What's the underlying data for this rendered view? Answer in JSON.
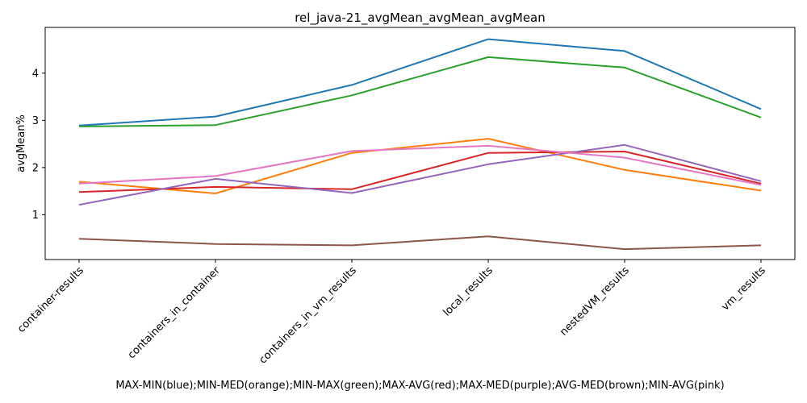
{
  "chart_data": {
    "type": "line",
    "title": "rel_java-21_avgMean_avgMean_avgMean",
    "xlabel": "MAX-MIN(blue);MIN-MED(orange);MIN-MAX(green);MAX-AVG(red);MAX-MED(purple);AVG-MED(brown);MIN-AVG(pink)",
    "ylabel": "avgMean%",
    "categories": [
      "container-results",
      "containers_in_container",
      "containers_in_vm_results",
      "local_results",
      "nestedVM_results",
      "vm_results"
    ],
    "yticks": [
      1,
      2,
      3,
      4
    ],
    "ylim": [
      0.05,
      4.97
    ],
    "grid": false,
    "legend": "none",
    "series": [
      {
        "color": "#1f77b4",
        "values": [
          2.89,
          3.08,
          3.75,
          4.72,
          4.47,
          3.24
        ]
      },
      {
        "color": "#ff7f0e",
        "values": [
          1.7,
          1.45,
          2.31,
          2.61,
          1.95,
          1.51
        ]
      },
      {
        "color": "#2ca02c",
        "values": [
          2.87,
          2.9,
          3.53,
          4.34,
          4.12,
          3.06
        ]
      },
      {
        "color": "#d62728",
        "values": [
          1.48,
          1.59,
          1.54,
          2.31,
          2.34,
          1.66
        ]
      },
      {
        "color": "#9467bd",
        "values": [
          1.21,
          1.76,
          1.46,
          2.07,
          2.48,
          1.71
        ]
      },
      {
        "color": "#8c564b",
        "values": [
          0.49,
          0.38,
          0.35,
          0.54,
          0.27,
          0.35
        ]
      },
      {
        "color": "#e377c2",
        "values": [
          1.66,
          1.82,
          2.35,
          2.46,
          2.21,
          1.63
        ]
      }
    ]
  }
}
